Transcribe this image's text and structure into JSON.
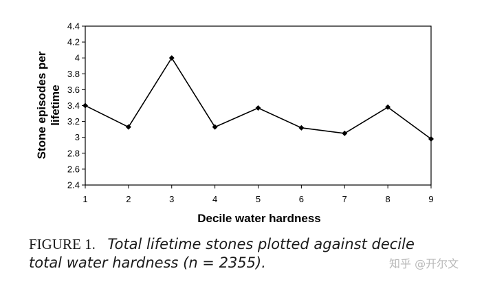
{
  "chart_data": {
    "type": "line",
    "x": [
      1,
      2,
      3,
      4,
      5,
      6,
      7,
      8,
      9
    ],
    "y": [
      3.4,
      3.13,
      4.0,
      3.13,
      3.37,
      3.12,
      3.05,
      3.38,
      2.98
    ],
    "xlabel": "Decile water hardness",
    "ylabel_lines": [
      "Stone episodes per",
      "lifetime"
    ],
    "xlim": [
      1,
      9
    ],
    "ylim": [
      2.4,
      4.4
    ],
    "yticks": [
      "2.4",
      "2.6",
      "2.8",
      "3",
      "3.2",
      "3.4",
      "3.6",
      "3.8",
      "4",
      "4.2",
      "4.4"
    ],
    "xticks": [
      "1",
      "2",
      "3",
      "4",
      "5",
      "6",
      "7",
      "8",
      "9"
    ],
    "grid": false,
    "line_color": "#000000",
    "marker": "diamond"
  },
  "caption": {
    "label": "FIGURE 1.",
    "text_line1": "Total lifetime stones plotted against decile",
    "text_line2": "total water hardness (n = 2355)."
  },
  "watermark": "知乎 @开尔文"
}
